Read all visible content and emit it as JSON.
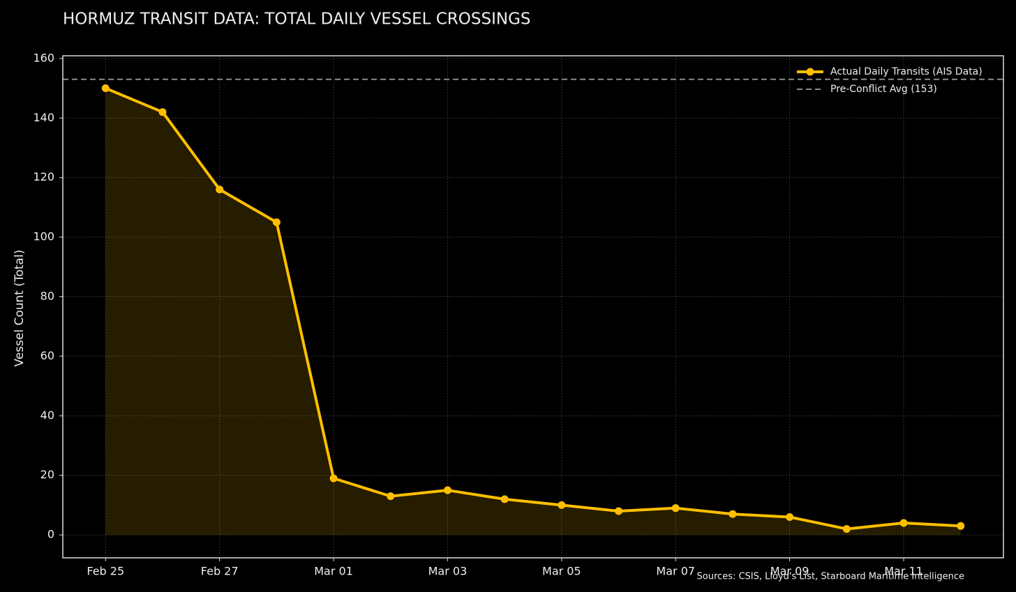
{
  "chart_data": {
    "type": "line",
    "title": "HORMUZ TRANSIT DATA: TOTAL DAILY VESSEL CROSSINGS",
    "y_label": "Vessel Count (Total)",
    "source": "Sources: CSIS, Lloyd's List, Starboard Maritime Intelligence",
    "categories": [
      "Feb 25",
      null,
      "Feb 27",
      null,
      "Mar 01",
      null,
      "Mar 03",
      null,
      "Mar 05",
      null,
      "Mar 07",
      null,
      "Mar 09",
      null,
      "Mar 11",
      null
    ],
    "series": [
      {
        "name": "Actual Daily Transits (AIS Data)",
        "color": "#ffbf00",
        "values": [
          150,
          142,
          116,
          105,
          19,
          13,
          15,
          12,
          10,
          8,
          9,
          7,
          6,
          2,
          4,
          3
        ]
      }
    ],
    "reference_line": {
      "value": 153,
      "label": "Pre-Conflict Avg (153)",
      "color": "#8c8c8c"
    },
    "ylim": [
      -7.7,
      160.9
    ],
    "yticks": [
      0,
      20,
      40,
      60,
      80,
      100,
      120,
      140,
      160
    ],
    "grid": true,
    "legend": "upper right",
    "fill_area": true
  }
}
